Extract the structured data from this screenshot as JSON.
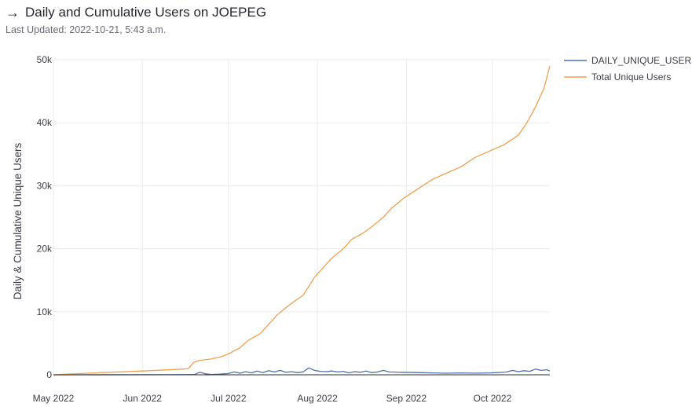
{
  "header": {
    "title": "Daily and Cumulative Users on JOEPEG",
    "last_updated": "Last Updated: 2022-10-21, 5:43 a.m.",
    "icon": "arrow-right-icon"
  },
  "colors": {
    "daily": "#4c72a8",
    "total": "#f0a050",
    "grid": "#ebebeb",
    "axis": "#2b2b2b"
  },
  "chart_data": {
    "type": "line",
    "ylabel": "Daily & Cumulative Unique Users",
    "xlabel": "",
    "ylim": [
      0,
      50000
    ],
    "xlim": [
      "2022-05-01",
      "2022-10-21"
    ],
    "y_ticks": [
      {
        "value": 0,
        "label": "0"
      },
      {
        "value": 10000,
        "label": "10k"
      },
      {
        "value": 20000,
        "label": "20k"
      },
      {
        "value": 30000,
        "label": "30k"
      },
      {
        "value": 40000,
        "label": "40k"
      },
      {
        "value": 50000,
        "label": "50k"
      }
    ],
    "x_ticks": [
      {
        "date": "2022-05-01",
        "label": "May 2022"
      },
      {
        "date": "2022-06-01",
        "label": "Jun 2022"
      },
      {
        "date": "2022-07-01",
        "label": "Jul 2022"
      },
      {
        "date": "2022-08-01",
        "label": "Aug 2022"
      },
      {
        "date": "2022-09-01",
        "label": "Sep 2022"
      },
      {
        "date": "2022-10-01",
        "label": "Oct 2022"
      }
    ],
    "grid": true,
    "legend_position": "top-right",
    "series": [
      {
        "name": "DAILY_UNIQUE_USERS",
        "color": "#4c72a8",
        "points": [
          [
            "2022-05-01",
            0
          ],
          [
            "2022-06-10",
            10
          ],
          [
            "2022-06-19",
            20
          ],
          [
            "2022-06-21",
            400
          ],
          [
            "2022-06-23",
            150
          ],
          [
            "2022-06-25",
            50
          ],
          [
            "2022-06-28",
            100
          ],
          [
            "2022-07-01",
            200
          ],
          [
            "2022-07-03",
            450
          ],
          [
            "2022-07-05",
            250
          ],
          [
            "2022-07-07",
            500
          ],
          [
            "2022-07-09",
            300
          ],
          [
            "2022-07-11",
            600
          ],
          [
            "2022-07-13",
            350
          ],
          [
            "2022-07-15",
            650
          ],
          [
            "2022-07-17",
            450
          ],
          [
            "2022-07-19",
            700
          ],
          [
            "2022-07-21",
            400
          ],
          [
            "2022-07-23",
            500
          ],
          [
            "2022-07-25",
            350
          ],
          [
            "2022-07-27",
            450
          ],
          [
            "2022-07-29",
            1100
          ],
          [
            "2022-07-31",
            700
          ],
          [
            "2022-08-02",
            550
          ],
          [
            "2022-08-04",
            500
          ],
          [
            "2022-08-06",
            600
          ],
          [
            "2022-08-08",
            450
          ],
          [
            "2022-08-10",
            550
          ],
          [
            "2022-08-12",
            300
          ],
          [
            "2022-08-14",
            500
          ],
          [
            "2022-08-16",
            400
          ],
          [
            "2022-08-18",
            600
          ],
          [
            "2022-08-20",
            350
          ],
          [
            "2022-08-22",
            450
          ],
          [
            "2022-08-24",
            700
          ],
          [
            "2022-08-26",
            450
          ],
          [
            "2022-08-30",
            400
          ],
          [
            "2022-09-05",
            350
          ],
          [
            "2022-09-10",
            300
          ],
          [
            "2022-09-15",
            250
          ],
          [
            "2022-09-20",
            300
          ],
          [
            "2022-09-25",
            250
          ],
          [
            "2022-09-30",
            300
          ],
          [
            "2022-10-03",
            350
          ],
          [
            "2022-10-06",
            450
          ],
          [
            "2022-10-08",
            700
          ],
          [
            "2022-10-10",
            500
          ],
          [
            "2022-10-12",
            650
          ],
          [
            "2022-10-14",
            550
          ],
          [
            "2022-10-16",
            900
          ],
          [
            "2022-10-18",
            700
          ],
          [
            "2022-10-20",
            800
          ],
          [
            "2022-10-21",
            600
          ]
        ]
      },
      {
        "name": "Total Unique Users",
        "color": "#f0a050",
        "points": [
          [
            "2022-05-01",
            0
          ],
          [
            "2022-05-15",
            300
          ],
          [
            "2022-06-01",
            600
          ],
          [
            "2022-06-15",
            900
          ],
          [
            "2022-06-17",
            1000
          ],
          [
            "2022-06-19",
            2000
          ],
          [
            "2022-06-21",
            2300
          ],
          [
            "2022-06-25",
            2500
          ],
          [
            "2022-06-28",
            2800
          ],
          [
            "2022-07-01",
            3300
          ],
          [
            "2022-07-05",
            4300
          ],
          [
            "2022-07-08",
            5500
          ],
          [
            "2022-07-12",
            6500
          ],
          [
            "2022-07-15",
            8000
          ],
          [
            "2022-07-18",
            9500
          ],
          [
            "2022-07-22",
            11000
          ],
          [
            "2022-07-25",
            12000
          ],
          [
            "2022-07-27",
            12600
          ],
          [
            "2022-07-29",
            14000
          ],
          [
            "2022-07-31",
            15500
          ],
          [
            "2022-08-03",
            17000
          ],
          [
            "2022-08-06",
            18500
          ],
          [
            "2022-08-10",
            20000
          ],
          [
            "2022-08-13",
            21500
          ],
          [
            "2022-08-17",
            22500
          ],
          [
            "2022-08-20",
            23500
          ],
          [
            "2022-08-24",
            25000
          ],
          [
            "2022-08-27",
            26500
          ],
          [
            "2022-08-31",
            28000
          ],
          [
            "2022-09-05",
            29500
          ],
          [
            "2022-09-10",
            31000
          ],
          [
            "2022-09-15",
            32000
          ],
          [
            "2022-09-20",
            33000
          ],
          [
            "2022-09-25",
            34500
          ],
          [
            "2022-09-30",
            35500
          ],
          [
            "2022-10-05",
            36500
          ],
          [
            "2022-10-10",
            38000
          ],
          [
            "2022-10-13",
            40000
          ],
          [
            "2022-10-16",
            42500
          ],
          [
            "2022-10-19",
            45500
          ],
          [
            "2022-10-21",
            49000
          ]
        ]
      }
    ]
  }
}
